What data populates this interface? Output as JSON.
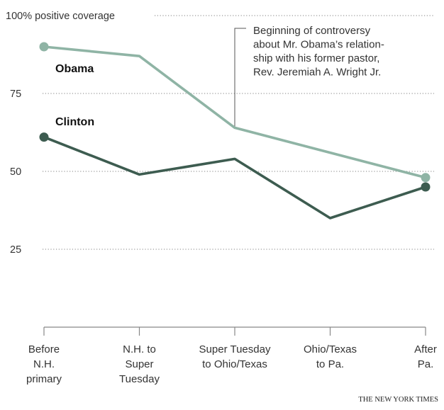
{
  "chart_data": {
    "type": "line",
    "categories": [
      [
        "Before",
        "N.H.",
        "primary"
      ],
      [
        "N.H. to",
        "Super",
        "Tuesday"
      ],
      [
        "Super Tuesday",
        "to Ohio/Texas"
      ],
      [
        "Ohio/Texas",
        "to Pa."
      ],
      [
        "After",
        "Pa."
      ]
    ],
    "y_ticks": [
      {
        "value": 100,
        "label": "100% positive coverage"
      },
      {
        "value": 75,
        "label": "75"
      },
      {
        "value": 50,
        "label": "50"
      },
      {
        "value": 25,
        "label": "25"
      }
    ],
    "ylim": [
      0,
      100
    ],
    "grid": true,
    "series": [
      {
        "name": "Obama",
        "color": "#8fb4a5",
        "values": [
          90,
          87,
          64,
          56,
          48
        ]
      },
      {
        "name": "Clinton",
        "color": "#3d5c50",
        "values": [
          61,
          49,
          54,
          35,
          45
        ]
      }
    ],
    "annotation": {
      "lines": [
        "Beginning of controversy",
        "about Mr. Obama’s relation-",
        "ship with his former pastor,",
        "Rev. Jeremiah A. Wright Jr."
      ],
      "category_index": 2
    },
    "credit": "THE NEW YORK TIMES"
  }
}
